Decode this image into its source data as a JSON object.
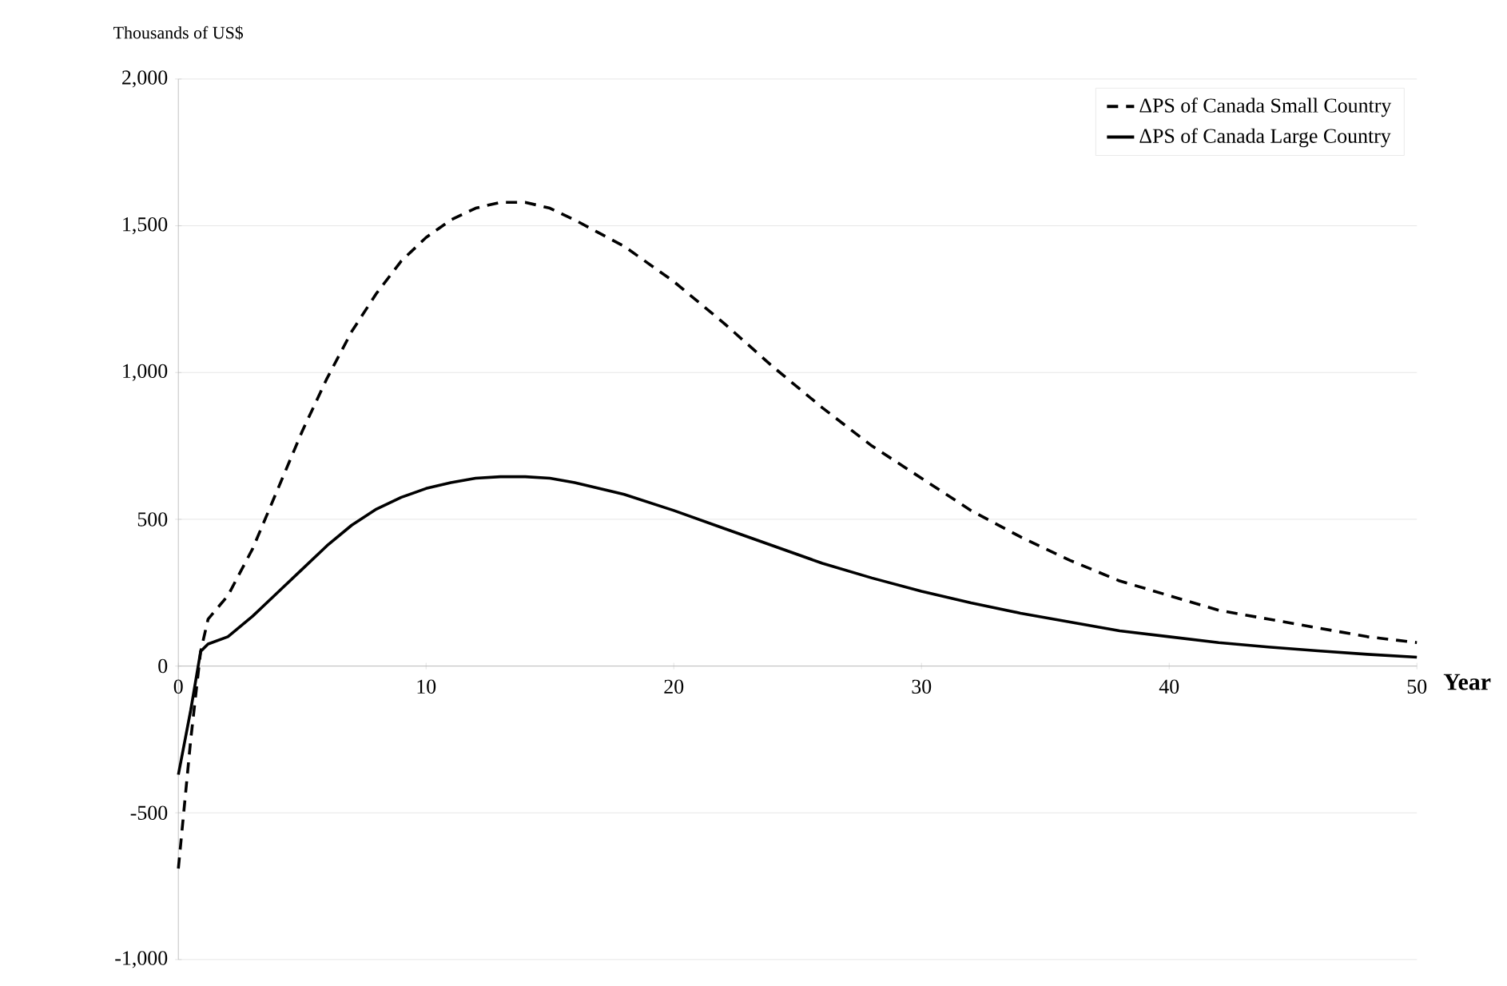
{
  "chart_data": {
    "type": "line",
    "xlabel": "Year",
    "ylabel": "Thousands of US$",
    "xlim": [
      0,
      50
    ],
    "ylim": [
      -1000,
      2000
    ],
    "xticks": [
      0,
      10,
      20,
      30,
      40,
      50
    ],
    "yticks": [
      {
        "value": -1000,
        "label": "-1,000"
      },
      {
        "value": -500,
        "label": "-500"
      },
      {
        "value": 0,
        "label": "0"
      },
      {
        "value": 500,
        "label": "500"
      },
      {
        "value": 1000,
        "label": "1,000"
      },
      {
        "value": 1500,
        "label": "1,500"
      },
      {
        "value": 2000,
        "label": "2,000"
      }
    ],
    "grid": "y",
    "legend": "top right",
    "marker": "none",
    "series": [
      {
        "name": "ΔPS of Canada Small Country",
        "color": "#000000",
        "line_style": "dashed",
        "x": [
          0,
          0.5,
          0.9,
          1.2,
          2,
          3,
          4,
          5,
          6,
          7,
          8,
          9,
          10,
          11,
          12,
          13,
          14,
          15,
          16,
          18,
          20,
          22,
          24,
          26,
          28,
          30,
          32,
          34,
          36,
          38,
          40,
          42,
          44,
          46,
          48,
          50
        ],
        "values": [
          -690,
          -250,
          50,
          160,
          240,
          400,
          600,
          800,
          980,
          1140,
          1270,
          1380,
          1460,
          1520,
          1560,
          1580,
          1580,
          1560,
          1520,
          1430,
          1310,
          1170,
          1020,
          880,
          750,
          640,
          530,
          440,
          360,
          290,
          240,
          190,
          160,
          130,
          100,
          80
        ]
      },
      {
        "name": "ΔPS of Canada Large Country",
        "color": "#000000",
        "line_style": "solid",
        "x": [
          0,
          0.5,
          0.9,
          1.2,
          2,
          3,
          4,
          5,
          6,
          7,
          8,
          9,
          10,
          11,
          12,
          13,
          14,
          15,
          16,
          18,
          20,
          22,
          24,
          26,
          28,
          30,
          32,
          34,
          36,
          38,
          40,
          42,
          44,
          46,
          48,
          50
        ],
        "values": [
          -370,
          -150,
          50,
          75,
          100,
          170,
          250,
          330,
          410,
          480,
          535,
          575,
          605,
          625,
          640,
          645,
          645,
          640,
          625,
          585,
          530,
          470,
          410,
          350,
          300,
          255,
          215,
          180,
          150,
          120,
          100,
          80,
          65,
          52,
          40,
          30
        ]
      }
    ]
  }
}
